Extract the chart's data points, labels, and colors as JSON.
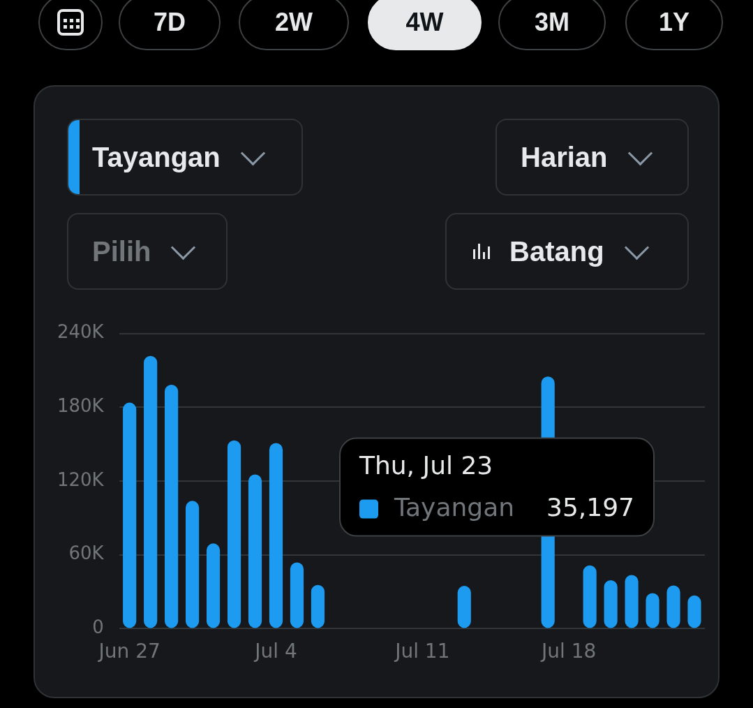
{
  "chart_data": {
    "type": "bar",
    "categories": [
      "Jun 27",
      null,
      null,
      null,
      null,
      null,
      null,
      "Jul 4",
      null,
      null,
      null,
      null,
      null,
      null,
      "Jul 11",
      null,
      null,
      null,
      null,
      null,
      null,
      "Jul 18",
      null,
      null,
      null,
      null,
      null,
      null
    ],
    "series": [
      {
        "name": "Tayangan",
        "color": "#1d9bf0",
        "values": [
          183800,
          221800,
          198300,
          103900,
          69300,
          153100,
          125400,
          150900,
          53900,
          35600,
          null,
          null,
          null,
          null,
          null,
          null,
          34800,
          null,
          null,
          null,
          205000,
          null,
          51500,
          39400,
          43700,
          28900,
          35197,
          27000
        ]
      }
    ],
    "ylim": [
      0,
      240000
    ],
    "yticks": [
      {
        "value": 0,
        "label": "0"
      },
      {
        "value": 60000,
        "label": "60K"
      },
      {
        "value": 120000,
        "label": "120K"
      },
      {
        "value": 180000,
        "label": "180K"
      },
      {
        "value": 240000,
        "label": "240K"
      }
    ],
    "grid": "y",
    "annotations": [
      "7D",
      "2W",
      "4W",
      "3M",
      "1Y",
      "Harian",
      "Pilih",
      "Batang",
      "Thu, Jul 23",
      "35,197"
    ]
  }
}
